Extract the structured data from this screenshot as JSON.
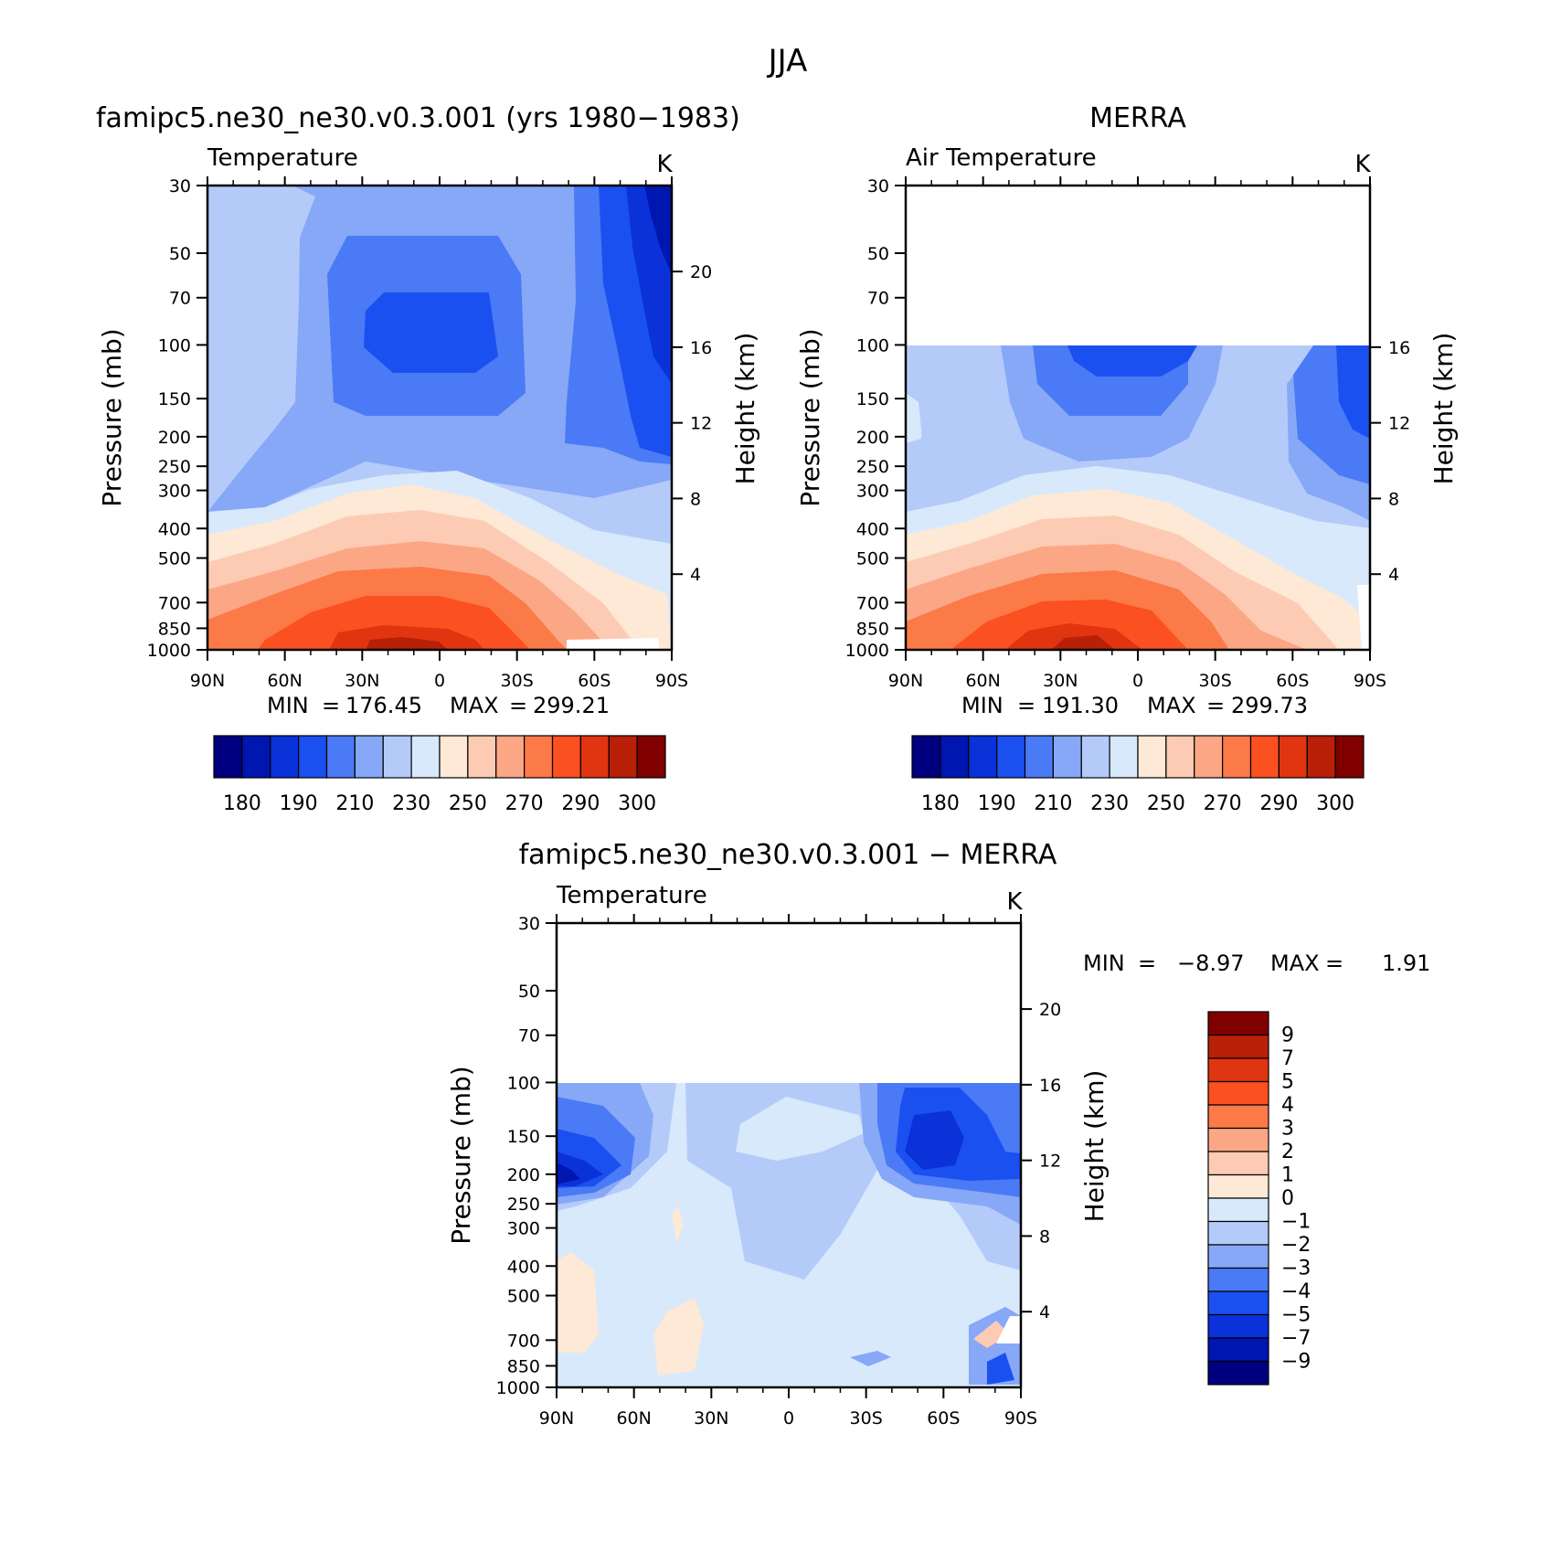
{
  "page": {
    "title": "JJA"
  },
  "chart_data": [
    {
      "type": "heatmap",
      "id": "model",
      "title": "famipc5.ne30_ne30.v0.3.001 (yrs 1980−1983)",
      "variable": "Temperature",
      "units": "K",
      "xlabel": "",
      "ylabel": "Pressure (mb)",
      "ylabel_right": "Height (km)",
      "x_ticks": [
        "90N",
        "60N",
        "30N",
        "0",
        "30S",
        "60S",
        "90S"
      ],
      "y_ticks": [
        30,
        50,
        70,
        100,
        150,
        200,
        250,
        300,
        400,
        500,
        700,
        850,
        1000
      ],
      "y_ticks_right": [
        4,
        8,
        12,
        16,
        20
      ],
      "ylim": [
        1000,
        30
      ],
      "xlim": [
        90,
        -90
      ],
      "y_scale": "log",
      "data_top": 30,
      "stats": {
        "min_label": "MIN",
        "min": "176.45",
        "max_label": "MAX",
        "max": "299.21"
      },
      "colorbar": {
        "orientation": "horizontal",
        "colors": [
          "#000080",
          "#0016b0",
          "#0a32d8",
          "#1a50f0",
          "#4a7af5",
          "#87a8f7",
          "#b4cbfa",
          "#d8e9fc",
          "#fde9d5",
          "#fdcbb4",
          "#fba786",
          "#fb7a48",
          "#fb5020",
          "#e03510",
          "#b82008",
          "#800000"
        ],
        "labels": [
          "180",
          "190",
          "210",
          "230",
          "250",
          "270",
          "290",
          "300"
        ]
      }
    },
    {
      "type": "heatmap",
      "id": "obs",
      "title": "MERRA",
      "variable": "Air Temperature",
      "units": "K",
      "xlabel": "",
      "ylabel": "Pressure (mb)",
      "ylabel_right": "Height (km)",
      "x_ticks": [
        "90N",
        "60N",
        "30N",
        "0",
        "30S",
        "60S",
        "90S"
      ],
      "y_ticks": [
        30,
        50,
        70,
        100,
        150,
        200,
        250,
        300,
        400,
        500,
        700,
        850,
        1000
      ],
      "y_ticks_right": [
        4,
        8,
        12,
        16
      ],
      "ylim": [
        1000,
        30
      ],
      "xlim": [
        90,
        -90
      ],
      "y_scale": "log",
      "data_top": 100,
      "stats": {
        "min_label": "MIN",
        "min": "191.30",
        "max_label": "MAX",
        "max": "299.73"
      },
      "colorbar": {
        "orientation": "horizontal",
        "colors": [
          "#000080",
          "#0016b0",
          "#0a32d8",
          "#1a50f0",
          "#4a7af5",
          "#87a8f7",
          "#b4cbfa",
          "#d8e9fc",
          "#fde9d5",
          "#fdcbb4",
          "#fba786",
          "#fb7a48",
          "#fb5020",
          "#e03510",
          "#b82008",
          "#800000"
        ],
        "labels": [
          "180",
          "190",
          "210",
          "230",
          "250",
          "270",
          "290",
          "300"
        ]
      }
    },
    {
      "type": "heatmap",
      "id": "diff",
      "title": "famipc5.ne30_ne30.v0.3.001 − MERRA",
      "variable": "Temperature",
      "units": "K",
      "xlabel": "",
      "ylabel": "Pressure (mb)",
      "ylabel_right": "Height (km)",
      "x_ticks": [
        "90N",
        "60N",
        "30N",
        "0",
        "30S",
        "60S",
        "90S"
      ],
      "y_ticks": [
        30,
        50,
        70,
        100,
        150,
        200,
        250,
        300,
        400,
        500,
        700,
        850,
        1000
      ],
      "y_ticks_right": [
        4,
        8,
        12,
        16,
        20
      ],
      "ylim": [
        1000,
        30
      ],
      "xlim": [
        90,
        -90
      ],
      "y_scale": "log",
      "data_top": 100,
      "stats": {
        "min_label": "MIN",
        "min": "−8.97",
        "max_label": "MAX",
        "max": "1.91"
      },
      "colorbar": {
        "orientation": "vertical",
        "colors": [
          "#800000",
          "#b82008",
          "#e03510",
          "#fb5020",
          "#fb7a48",
          "#fba786",
          "#fdcbb4",
          "#fde9d5",
          "#d8e9fc",
          "#b4cbfa",
          "#87a8f7",
          "#4a7af5",
          "#1a50f0",
          "#0a32d8",
          "#0016b0",
          "#000080"
        ],
        "labels": [
          "9",
          "7",
          "5",
          "4",
          "3",
          "2",
          "1",
          "0",
          "−1",
          "−2",
          "−3",
          "−4",
          "−5",
          "−7",
          "−9"
        ]
      }
    }
  ]
}
